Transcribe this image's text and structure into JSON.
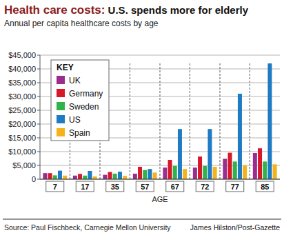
{
  "chart_data": {
    "type": "bar",
    "title": "Health care costs: U.S. spends more for elderly",
    "subtitle": "Annual per capita healthcare costs by age",
    "x_label": "AGE",
    "legend_title": "KEY",
    "source": "Source: Paul Fischbeck, Carnegie Mellon University",
    "credit": "James Hilston/Post-Gazette",
    "categories": [
      "7",
      "17",
      "35",
      "57",
      "67",
      "72",
      "77",
      "85"
    ],
    "series": [
      {
        "name": "UK",
        "color": "#9b2d8e",
        "values": [
          2200,
          1300,
          1600,
          2000,
          4200,
          4200,
          7400,
          9500
        ]
      },
      {
        "name": "Germany",
        "color": "#d7182a",
        "values": [
          2200,
          1900,
          2600,
          4500,
          7000,
          8200,
          9600,
          11200
        ]
      },
      {
        "name": "Sweden",
        "color": "#2fb34a",
        "values": [
          1400,
          1300,
          2000,
          3300,
          4800,
          4800,
          6400,
          6400
        ]
      },
      {
        "name": "US",
        "color": "#1e7bc4",
        "values": [
          3100,
          3000,
          2700,
          3700,
          18200,
          18200,
          31000,
          42000
        ]
      },
      {
        "name": "Spain",
        "color": "#f5b21a",
        "values": [
          1300,
          1000,
          1200,
          2400,
          3700,
          4500,
          5000,
          5400
        ]
      }
    ],
    "ylim": [
      0,
      45000
    ],
    "yticks": [
      0,
      {
        "value": 5000,
        "label": "$5,000"
      },
      {
        "value": 10000,
        "label": "$10,000"
      },
      {
        "value": 15000,
        "label": "$15,000"
      },
      {
        "value": 20000,
        "label": "$20,000"
      },
      {
        "value": 25000,
        "label": "$25,000"
      },
      {
        "value": 30000,
        "label": "$30,000"
      },
      {
        "value": 35000,
        "label": "$35,000"
      },
      {
        "value": 40000,
        "label": "$40,000"
      },
      {
        "value": 45000,
        "label": "$45,000"
      }
    ],
    "grid": true,
    "legend": "top-left"
  }
}
